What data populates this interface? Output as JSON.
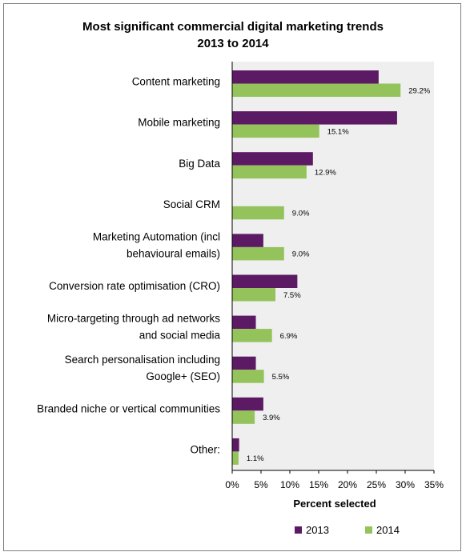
{
  "chart_data": {
    "type": "bar",
    "orientation": "horizontal",
    "title": "Most significant commercial digital marketing trends",
    "subtitle": "2013 to 2014",
    "xlabel": "Percent selected",
    "ylabel": "",
    "xlim": [
      0,
      35
    ],
    "x_ticks": [
      "0%",
      "5%",
      "10%",
      "15%",
      "20%",
      "25%",
      "30%",
      "35%"
    ],
    "grid": false,
    "legend_position": "bottom",
    "categories": [
      [
        "Content marketing"
      ],
      [
        "Mobile marketing"
      ],
      [
        "Big Data"
      ],
      [
        "Social CRM"
      ],
      [
        "Marketing Automation (incl",
        "behavioural emails)"
      ],
      [
        "Conversion rate optimisation (CRO)"
      ],
      [
        "Micro-targeting through ad networks",
        "and social media"
      ],
      [
        "Search personalisation including",
        "Google+ (SEO)"
      ],
      [
        "Branded niche or vertical communities"
      ],
      [
        "Other:"
      ]
    ],
    "series": [
      {
        "name": "2013",
        "color": "#5b1a63",
        "values": [
          25.4,
          28.6,
          14.0,
          0,
          5.4,
          11.3,
          4.1,
          4.1,
          5.4,
          1.2
        ],
        "labels": [
          "",
          "",
          "",
          "",
          "",
          "",
          "",
          "",
          "",
          ""
        ]
      },
      {
        "name": "2014",
        "color": "#93c35a",
        "values": [
          29.2,
          15.1,
          12.9,
          9.0,
          9.0,
          7.5,
          6.9,
          5.5,
          3.9,
          1.1
        ],
        "labels": [
          "29.2%",
          "15.1%",
          "12.9%",
          "9.0%",
          "9.0%",
          "7.5%",
          "6.9%",
          "5.5%",
          "3.9%",
          "1.1%"
        ]
      }
    ]
  }
}
